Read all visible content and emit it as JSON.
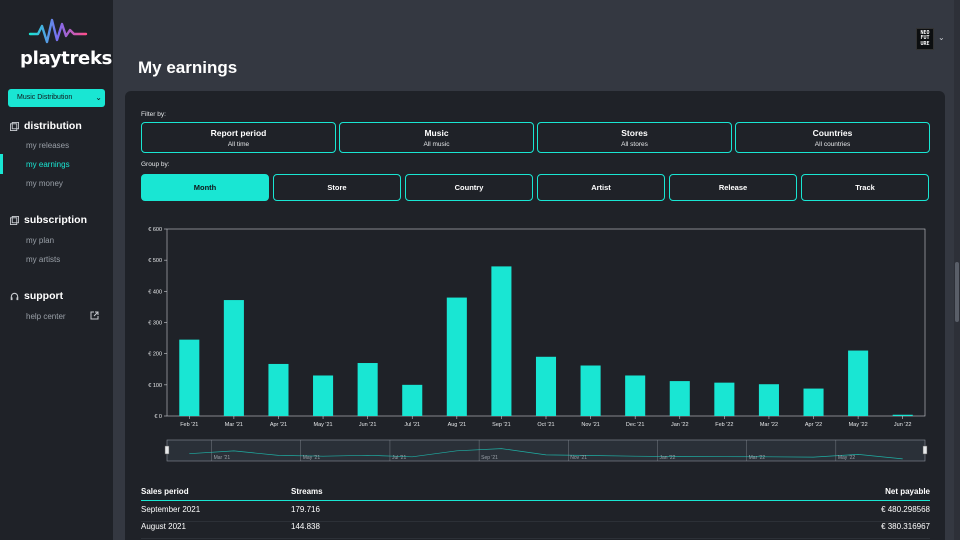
{
  "sidebar": {
    "logo_text": "playtreks",
    "distribution_select": "Music Distribution",
    "sections": [
      {
        "title": "distribution",
        "items": [
          "my releases",
          "my earnings",
          "my money"
        ]
      },
      {
        "title": "subscription",
        "items": [
          "my plan",
          "my artists"
        ]
      },
      {
        "title": "support",
        "items": [
          "help center"
        ]
      }
    ]
  },
  "header": {
    "avatar_text": "NEO FUT URE",
    "page_title": "My earnings"
  },
  "filters": {
    "label": "Filter by:",
    "items": [
      {
        "title": "Report period",
        "value": "All time"
      },
      {
        "title": "Music",
        "value": "All music"
      },
      {
        "title": "Stores",
        "value": "All stores"
      },
      {
        "title": "Countries",
        "value": "All countries"
      }
    ]
  },
  "group": {
    "label": "Group by:",
    "items": [
      "Month",
      "Store",
      "Country",
      "Artist",
      "Release",
      "Track"
    ],
    "active": "Month"
  },
  "colors": {
    "accent": "#19e6d3",
    "panel": "#1f2228",
    "bg": "#343841"
  },
  "chart_data": {
    "type": "bar",
    "categories": [
      "Feb '21",
      "Mar '21",
      "Apr '21",
      "May '21",
      "Jun '21",
      "Jul '21",
      "Aug '21",
      "Sep '21",
      "Oct '21",
      "Nov '21",
      "Dec '21",
      "Jan '22",
      "Feb '22",
      "Mar '22",
      "Apr '22",
      "May '22",
      "Jun '22"
    ],
    "values": [
      245,
      372,
      167,
      130,
      170,
      100,
      380,
      480,
      190,
      162,
      130,
      112,
      107,
      102,
      88,
      210,
      4
    ],
    "yticks": [
      "€ 0",
      "€ 100",
      "€ 200",
      "€ 300",
      "€ 400",
      "€ 500",
      "€ 600"
    ],
    "ylim": [
      0,
      600
    ],
    "navigator_labels": [
      "Mar '21",
      "May '21",
      "Jul '21",
      "Sep '21",
      "Nov '21",
      "Jan '22",
      "Mar '22",
      "May '22"
    ]
  },
  "table": {
    "headers": [
      "Sales period",
      "Streams",
      "Net payable"
    ],
    "rows": [
      [
        "September 2021",
        "179.716",
        "€ 480.298568"
      ],
      [
        "August 2021",
        "144.838",
        "€ 380.316967"
      ]
    ]
  }
}
